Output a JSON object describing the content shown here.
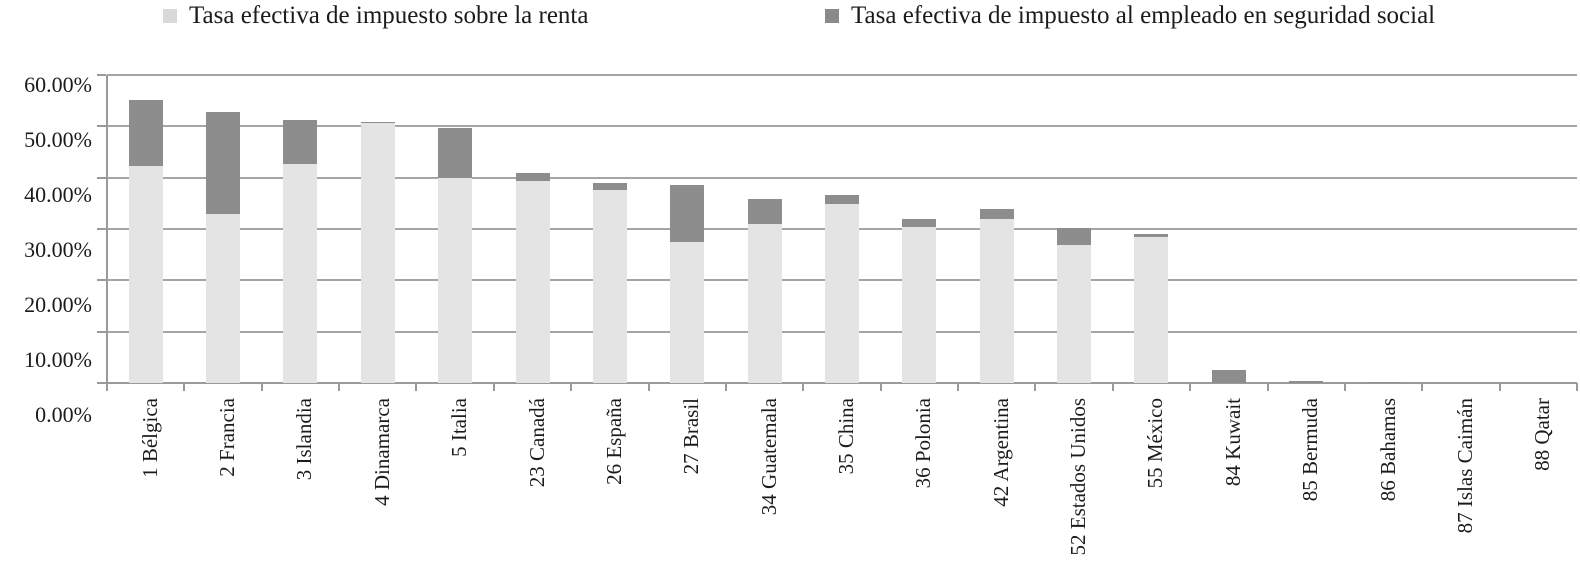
{
  "colors": {
    "income_bar": "#e4e4e4",
    "social_bar": "#8d8d8d",
    "legend_income_swatch": "#d9d9d9",
    "legend_social_swatch": "#8a8a8a",
    "gridline": "#a5a5a5",
    "axis": "#9a9a9a",
    "text": "#1b1b1b"
  },
  "legend": {
    "items": [
      {
        "label": "Tasa efectiva de impuesto sobre la renta",
        "color": "#d9d9d9"
      },
      {
        "label": "Tasa efectiva de impuesto al empleado en seguridad social",
        "color": "#8a8a8a"
      }
    ]
  },
  "chart_data": {
    "type": "bar",
    "stacked": true,
    "title": "",
    "xlabel": "",
    "ylabel": "",
    "ylim": [
      0,
      60
    ],
    "ytick_step": 10,
    "ytick_labels_top_to_bottom": [
      "60.00%",
      "50.00%",
      "40.00%",
      "30.00%",
      "20.00%",
      "10.00%",
      "0.00%"
    ],
    "grid": true,
    "legend_position": "top",
    "categories": [
      "1 Bélgica",
      "2 Francia",
      "3 Islandia",
      "4 Dinamarca",
      "5 Italia",
      "23 Canadá",
      "26 España",
      "27 Brasil",
      "34 Guatemala",
      "35 China",
      "36 Polonia",
      "42 Argentina",
      "52 Estados Unidos",
      "55 México",
      "84 Kuwait",
      "85 Bermuda",
      "86 Bahamas",
      "87 Islas Caimán",
      "88 Qatar"
    ],
    "series": [
      {
        "name": "Tasa efectiva de impuesto sobre la renta",
        "color": "#e4e4e4",
        "values": [
          42.3,
          33.0,
          42.6,
          50.7,
          39.9,
          39.3,
          37.6,
          27.5,
          31.0,
          34.8,
          30.4,
          32.0,
          26.9,
          28.5,
          0,
          0,
          0,
          0,
          0
        ]
      },
      {
        "name": "Tasa efectiva de impuesto al empleado en seguridad social",
        "color": "#8d8d8d",
        "values": [
          12.8,
          19.8,
          8.6,
          0.2,
          9.8,
          1.7,
          1.3,
          11.0,
          4.8,
          1.8,
          1.5,
          1.8,
          3.3,
          0.5,
          2.5,
          0.3,
          0.2,
          0,
          0
        ]
      }
    ],
    "totals": [
      55.1,
      52.8,
      51.2,
      50.9,
      49.7,
      41.0,
      38.9,
      38.5,
      35.8,
      36.6,
      31.9,
      33.8,
      30.2,
      29.0,
      2.5,
      0.3,
      0.2,
      0,
      0
    ]
  }
}
